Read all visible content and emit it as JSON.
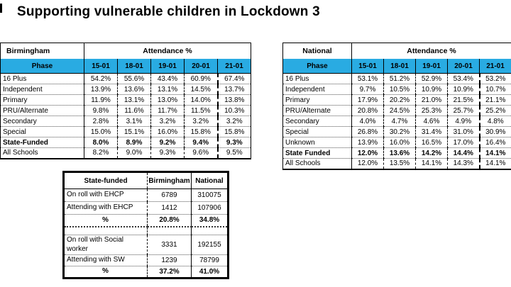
{
  "title": "Supporting vulnerable children in Lockdown 3",
  "colors": {
    "header_blue": "#29abe2",
    "border": "#000000",
    "background": "#ffffff"
  },
  "tables": {
    "birmingham": {
      "region_label": "Birmingham",
      "attendance_label": "Attendance %",
      "phase_label": "Phase",
      "dates": [
        "15-01",
        "18-01",
        "19-01",
        "20-01",
        "21-01"
      ],
      "rows": [
        {
          "phase": "16 Plus",
          "values": [
            "54.2%",
            "55.6%",
            "43.4%",
            "60.9%",
            "67.4%"
          ],
          "bold": false
        },
        {
          "phase": "Independent",
          "values": [
            "13.9%",
            "13.6%",
            "13.1%",
            "14.5%",
            "13.7%"
          ],
          "bold": false
        },
        {
          "phase": "Primary",
          "values": [
            "11.9%",
            "13.1%",
            "13.0%",
            "14.0%",
            "13.8%"
          ],
          "bold": false
        },
        {
          "phase": "PRU/Alternate",
          "values": [
            "9.8%",
            "11.6%",
            "11.7%",
            "11.5%",
            "10.3%"
          ],
          "bold": false
        },
        {
          "phase": "Secondary",
          "values": [
            "2.8%",
            "3.1%",
            "3.2%",
            "3.2%",
            "3.2%"
          ],
          "bold": false
        },
        {
          "phase": "Special",
          "values": [
            "15.0%",
            "15.1%",
            "16.0%",
            "15.8%",
            "15.8%"
          ],
          "bold": false
        },
        {
          "phase": "State-Funded",
          "values": [
            "8.0%",
            "8.9%",
            "9.2%",
            "9.4%",
            "9.3%"
          ],
          "bold": true
        },
        {
          "phase": "All Schools",
          "values": [
            "8.2%",
            "9.0%",
            "9.3%",
            "9.6%",
            "9.5%"
          ],
          "bold": false
        }
      ]
    },
    "national": {
      "region_label": "National",
      "attendance_label": "Attendance %",
      "phase_label": "Phase",
      "dates": [
        "15-01",
        "18-01",
        "19-01",
        "20-01",
        "21-01"
      ],
      "rows": [
        {
          "phase": "16 Plus",
          "values": [
            "53.1%",
            "51.2%",
            "52.9%",
            "53.4%",
            "53.2%"
          ],
          "bold": false
        },
        {
          "phase": "Independent",
          "values": [
            "9.7%",
            "10.5%",
            "10.9%",
            "10.9%",
            "10.7%"
          ],
          "bold": false
        },
        {
          "phase": "Primary",
          "values": [
            "17.9%",
            "20.2%",
            "21.0%",
            "21.5%",
            "21.1%"
          ],
          "bold": false
        },
        {
          "phase": "PRU/Alternate",
          "values": [
            "20.8%",
            "24.5%",
            "25.3%",
            "25.7%",
            "25.2%"
          ],
          "bold": false
        },
        {
          "phase": "Secondary",
          "values": [
            "4.0%",
            "4.7%",
            "4.6%",
            "4.9%",
            "4.8%"
          ],
          "bold": false
        },
        {
          "phase": "Special",
          "values": [
            "26.8%",
            "30.2%",
            "31.4%",
            "31.0%",
            "30.9%"
          ],
          "bold": false
        },
        {
          "phase": "Unknown",
          "values": [
            "13.9%",
            "16.0%",
            "16.5%",
            "17.0%",
            "16.4%"
          ],
          "bold": false
        },
        {
          "phase": "State Funded",
          "values": [
            "12.0%",
            "13.6%",
            "14.2%",
            "14.4%",
            "14.1%"
          ],
          "bold": true
        },
        {
          "phase": "All Schools",
          "values": [
            "12.0%",
            "13.5%",
            "14.1%",
            "14.3%",
            "14.1%"
          ],
          "bold": false
        }
      ]
    },
    "summary": {
      "headers": {
        "label": "State-funded",
        "birmingham": "Birmingham",
        "national": "National"
      },
      "rows": [
        {
          "label": "On roll with EHCP",
          "birmingham": "6789",
          "national": "310075",
          "bold": false
        },
        {
          "label": "Attending with EHCP",
          "birmingham": "1412",
          "national": "107906",
          "bold": false
        },
        {
          "label": "%",
          "birmingham": "20.8%",
          "national": "34.8%",
          "bold": true
        },
        {
          "label": "",
          "birmingham": "",
          "national": "",
          "bold": false
        },
        {
          "label": "On roll with Social worker",
          "birmingham": "3331",
          "national": "192155",
          "bold": false
        },
        {
          "label": "Attending with SW",
          "birmingham": "1239",
          "national": "78799",
          "bold": false
        },
        {
          "label": "%",
          "birmingham": "37.2%",
          "national": "41.0%",
          "bold": true
        }
      ]
    }
  }
}
